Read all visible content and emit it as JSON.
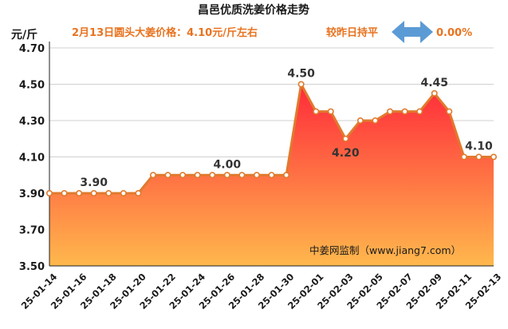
{
  "chart_data": {
    "type": "area",
    "title": "昌邑优质洗姜价格走势",
    "subtitle_left": "2月13日圆头大姜价格：4.10元/斤左右",
    "subtitle_right": "较昨日持平",
    "change_text": "0.00%",
    "ylabel": "元/斤",
    "ylim": [
      3.5,
      4.7
    ],
    "yticks": [
      "3.50",
      "3.70",
      "3.90",
      "4.10",
      "4.30",
      "4.50",
      "4.70"
    ],
    "grid": true,
    "legend": "none",
    "watermark": "中姜网监制（www.jiang7.com）",
    "x": [
      "25-01-14",
      "25-01-15",
      "25-01-16",
      "25-01-17",
      "25-01-18",
      "25-01-19",
      "25-01-20",
      "25-01-21",
      "25-01-22",
      "25-01-23",
      "25-01-24",
      "25-01-25",
      "25-01-26",
      "25-01-27",
      "25-01-28",
      "25-01-29",
      "25-01-30",
      "25-01-31",
      "25-02-01",
      "25-02-02",
      "25-02-03",
      "25-02-04",
      "25-02-05",
      "25-02-06",
      "25-02-07",
      "25-02-08",
      "25-02-09",
      "25-02-10",
      "25-02-11",
      "25-02-12",
      "25-02-13"
    ],
    "xtick_labels": [
      "25-01-14",
      "25-01-16",
      "25-01-18",
      "25-01-20",
      "25-01-22",
      "25-01-24",
      "25-01-26",
      "25-01-28",
      "25-01-30",
      "25-02-01",
      "25-02-03",
      "25-02-05",
      "25-02-07",
      "25-02-09",
      "25-02-11",
      "25-02-13"
    ],
    "values": [
      3.9,
      3.9,
      3.9,
      3.9,
      3.9,
      3.9,
      3.9,
      4.0,
      4.0,
      4.0,
      4.0,
      4.0,
      4.0,
      4.0,
      4.0,
      4.0,
      4.0,
      4.5,
      4.35,
      4.35,
      4.2,
      4.3,
      4.3,
      4.35,
      4.35,
      4.35,
      4.45,
      4.35,
      4.1,
      4.1,
      4.1
    ],
    "data_labels": [
      {
        "x": "25-01-17",
        "text": "3.90"
      },
      {
        "x": "25-01-26",
        "text": "4.00"
      },
      {
        "x": "25-01-31",
        "text": "4.50"
      },
      {
        "x": "25-02-03",
        "text": "4.20"
      },
      {
        "x": "25-02-09",
        "text": "4.45"
      },
      {
        "x": "25-02-12",
        "text": "4.10"
      }
    ],
    "colors": {
      "line": "#e07a2e",
      "marker_fill": "#ffffff",
      "area_top": "#ff2a3a",
      "area_bottom": "#ffb84d",
      "arrow": "#5b9bd5",
      "subtitle": "#e8731f",
      "grid": "#d0d0d0"
    }
  }
}
